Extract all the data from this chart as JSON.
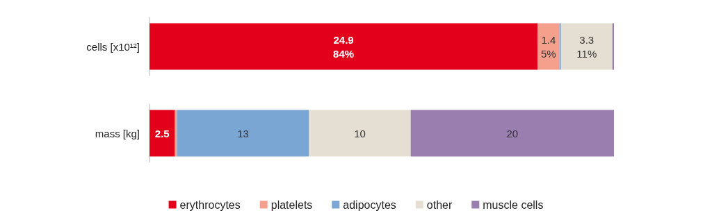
{
  "chart_data": [
    {
      "type": "bar",
      "orientation": "horizontal",
      "stacked": true,
      "categories": [
        "cells [x10¹²]"
      ],
      "xlim": [
        0,
        29.8
      ],
      "tick_labels": "y",
      "series": [
        {
          "color": "#e2001a",
          "values": [
            24.9
          ],
          "value_labels": [
            "24.9\n84%"
          ]
        },
        {
          "color": "#f4a08c",
          "values": [
            1.4
          ],
          "value_labels": [
            "1.4\n5%"
          ]
        },
        {
          "color": "#7aa6d4",
          "values": [
            0.1
          ],
          "value_labels": [
            null
          ]
        },
        {
          "color": "#e5dfd3",
          "values": [
            3.3
          ],
          "value_labels": [
            "3.3\n11%"
          ]
        },
        {
          "color": "#9a7eb0",
          "values": [
            0.1
          ],
          "value_labels": [
            null
          ]
        }
      ]
    },
    {
      "type": "bar",
      "orientation": "horizontal",
      "stacked": true,
      "categories": [
        "mass [kg]"
      ],
      "xlim": [
        0,
        45.7
      ],
      "tick_labels": "y",
      "legend": "bottom",
      "series": [
        {
          "name": "erythrocytes",
          "color": "#e2001a",
          "values": [
            2.5
          ],
          "value_labels": [
            "2.5"
          ]
        },
        {
          "name": "platelets",
          "color": "#f4a08c",
          "values": [
            0.2
          ],
          "value_labels": [
            null
          ]
        },
        {
          "name": "adipocytes",
          "color": "#7aa6d4",
          "values": [
            13
          ],
          "value_labels": [
            "13"
          ]
        },
        {
          "name": "other",
          "color": "#e5dfd3",
          "values": [
            10
          ],
          "value_labels": [
            "10"
          ]
        },
        {
          "name": "muscle cells",
          "color": "#9a7eb0",
          "values": [
            20
          ],
          "value_labels": [
            "20"
          ]
        }
      ]
    }
  ]
}
